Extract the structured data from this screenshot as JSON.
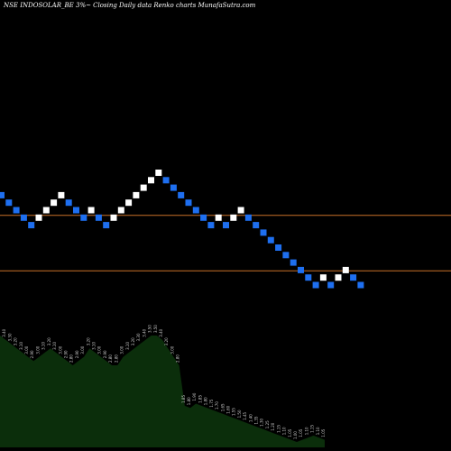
{
  "chart_data": {
    "type": "renko",
    "title": "NSE INDOSOLAR_BE 3%~ Closing Daily data Renko charts MunafaSutra.com",
    "colors": {
      "background": "#000000",
      "up_brick": "#ffffff",
      "down_brick": "#1e6ff0",
      "reference_line": "#c87028",
      "volume_fill": "#0b2e0b",
      "volume_label": "#cccccc"
    },
    "bricks": [
      {
        "i": 0,
        "level": 12,
        "dir": "down"
      },
      {
        "i": 1,
        "level": 11,
        "dir": "down"
      },
      {
        "i": 2,
        "level": 10,
        "dir": "down"
      },
      {
        "i": 3,
        "level": 9,
        "dir": "down"
      },
      {
        "i": 4,
        "level": 8,
        "dir": "down"
      },
      {
        "i": 5,
        "level": 9,
        "dir": "up"
      },
      {
        "i": 6,
        "level": 10,
        "dir": "up"
      },
      {
        "i": 7,
        "level": 11,
        "dir": "up"
      },
      {
        "i": 8,
        "level": 12,
        "dir": "up"
      },
      {
        "i": 9,
        "level": 11,
        "dir": "down"
      },
      {
        "i": 10,
        "level": 10,
        "dir": "down"
      },
      {
        "i": 11,
        "level": 9,
        "dir": "down"
      },
      {
        "i": 12,
        "level": 10,
        "dir": "up"
      },
      {
        "i": 13,
        "level": 9,
        "dir": "down"
      },
      {
        "i": 14,
        "level": 8,
        "dir": "down"
      },
      {
        "i": 15,
        "level": 9,
        "dir": "up"
      },
      {
        "i": 16,
        "level": 10,
        "dir": "up"
      },
      {
        "i": 17,
        "level": 11,
        "dir": "up"
      },
      {
        "i": 18,
        "level": 12,
        "dir": "up"
      },
      {
        "i": 19,
        "level": 13,
        "dir": "up"
      },
      {
        "i": 20,
        "level": 14,
        "dir": "up"
      },
      {
        "i": 21,
        "level": 15,
        "dir": "up"
      },
      {
        "i": 22,
        "level": 14,
        "dir": "down"
      },
      {
        "i": 23,
        "level": 13,
        "dir": "down"
      },
      {
        "i": 24,
        "level": 12,
        "dir": "down"
      },
      {
        "i": 25,
        "level": 11,
        "dir": "down"
      },
      {
        "i": 26,
        "level": 10,
        "dir": "down"
      },
      {
        "i": 27,
        "level": 9,
        "dir": "down"
      },
      {
        "i": 28,
        "level": 8,
        "dir": "down"
      },
      {
        "i": 29,
        "level": 9,
        "dir": "up"
      },
      {
        "i": 30,
        "level": 8,
        "dir": "down"
      },
      {
        "i": 31,
        "level": 9,
        "dir": "up"
      },
      {
        "i": 32,
        "level": 10,
        "dir": "up"
      },
      {
        "i": 33,
        "level": 9,
        "dir": "down"
      },
      {
        "i": 34,
        "level": 8,
        "dir": "down"
      },
      {
        "i": 35,
        "level": 7,
        "dir": "down"
      },
      {
        "i": 36,
        "level": 6,
        "dir": "down"
      },
      {
        "i": 37,
        "level": 5,
        "dir": "down"
      },
      {
        "i": 38,
        "level": 4,
        "dir": "down"
      },
      {
        "i": 39,
        "level": 3,
        "dir": "down"
      },
      {
        "i": 40,
        "level": 2,
        "dir": "down"
      },
      {
        "i": 41,
        "level": 1,
        "dir": "down"
      },
      {
        "i": 42,
        "level": 0,
        "dir": "down"
      },
      {
        "i": 43,
        "level": 1,
        "dir": "up"
      },
      {
        "i": 44,
        "level": 0,
        "dir": "down"
      },
      {
        "i": 45,
        "level": 1,
        "dir": "up"
      },
      {
        "i": 46,
        "level": 2,
        "dir": "up"
      },
      {
        "i": 47,
        "level": 1,
        "dir": "down"
      },
      {
        "i": 48,
        "level": 0,
        "dir": "down"
      }
    ],
    "reference_levels": [
      9.3,
      1.9
    ],
    "volume_labels": [
      "3.50",
      "3.40",
      "3.30",
      "3.20",
      "3.10",
      "3.00",
      "2.90",
      "3.00",
      "3.10",
      "3.20",
      "3.10",
      "3.00",
      "2.90",
      "2.80",
      "2.90",
      "3.00",
      "3.20",
      "3.10",
      "3.00",
      "2.90",
      "2.80",
      "2.80",
      "3.00",
      "3.10",
      "3.20",
      "3.30",
      "3.40",
      "3.50",
      "3.50",
      "3.40",
      "3.20",
      "3.00",
      "2.80",
      "1.85",
      "1.80",
      "1.90",
      "1.85",
      "1.80",
      "1.75",
      "1.70",
      "1.65",
      "1.60",
      "1.55",
      "1.50",
      "1.45",
      "1.40",
      "1.35",
      "1.30",
      "1.25",
      "1.20",
      "1.15",
      "1.10",
      "1.05",
      "1.00",
      "1.05",
      "1.10",
      "1.15",
      "1.10",
      "1.05"
    ],
    "grid": false,
    "legend": "none"
  }
}
